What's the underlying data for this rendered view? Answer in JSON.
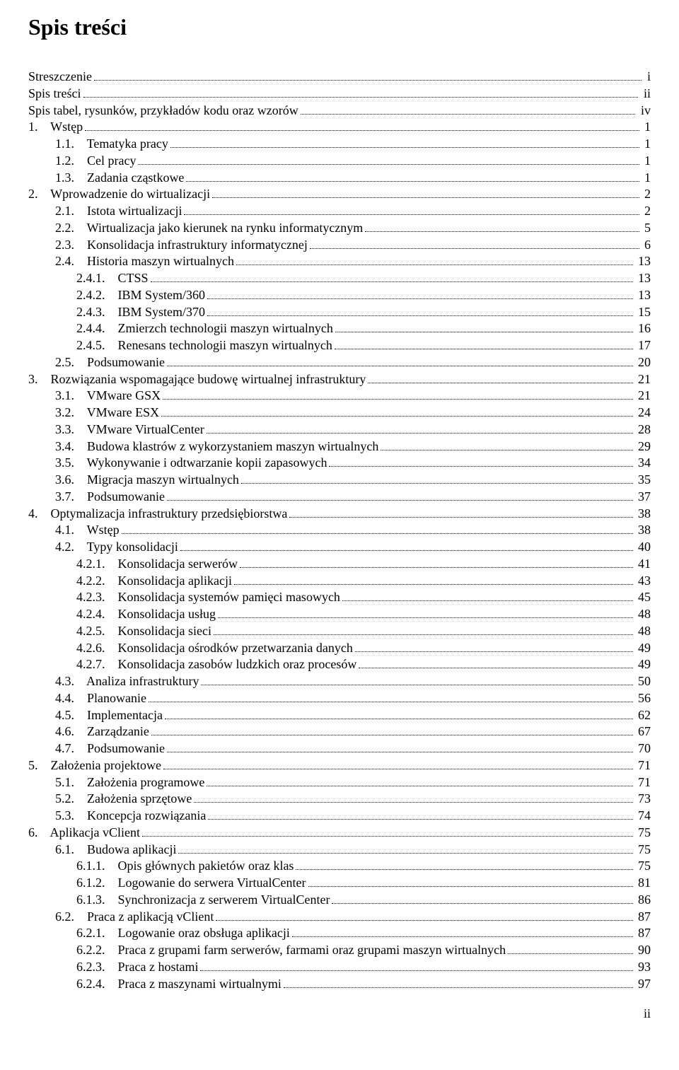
{
  "title": "Spis treści",
  "footer": "ii",
  "entries": [
    {
      "indent": 0,
      "label": "Streszczenie",
      "page": "i"
    },
    {
      "indent": 0,
      "label": "Spis treści",
      "page": "ii"
    },
    {
      "indent": 0,
      "label": "Spis tabel, rysunków, przykładów kodu oraz wzorów",
      "page": "iv"
    },
    {
      "indent": 0,
      "label": "1.    Wstęp",
      "page": "1"
    },
    {
      "indent": 2,
      "label": "1.1.    Tematyka pracy",
      "page": "1"
    },
    {
      "indent": 2,
      "label": "1.2.    Cel pracy",
      "page": "1"
    },
    {
      "indent": 2,
      "label": "1.3.    Zadania cząstkowe",
      "page": "1"
    },
    {
      "indent": 0,
      "label": "2.    Wprowadzenie do wirtualizacji",
      "page": "2"
    },
    {
      "indent": 2,
      "label": "2.1.    Istota wirtualizacji",
      "page": "2"
    },
    {
      "indent": 2,
      "label": "2.2.    Wirtualizacja jako kierunek na rynku informatycznym",
      "page": "5"
    },
    {
      "indent": 2,
      "label": "2.3.    Konsolidacja infrastruktury informatycznej",
      "page": "6"
    },
    {
      "indent": 2,
      "label": "2.4.    Historia maszyn wirtualnych",
      "page": "13"
    },
    {
      "indent": 3,
      "label": "2.4.1.    CTSS",
      "page": "13"
    },
    {
      "indent": 3,
      "label": "2.4.2.    IBM System/360",
      "page": "13"
    },
    {
      "indent": 3,
      "label": "2.4.3.    IBM System/370",
      "page": "15"
    },
    {
      "indent": 3,
      "label": "2.4.4.    Zmierzch technologii maszyn wirtualnych",
      "page": "16"
    },
    {
      "indent": 3,
      "label": "2.4.5.    Renesans technologii maszyn wirtualnych",
      "page": "17"
    },
    {
      "indent": 2,
      "label": "2.5.    Podsumowanie",
      "page": "20"
    },
    {
      "indent": 0,
      "label": "3.    Rozwiązania wspomagające budowę wirtualnej infrastruktury",
      "page": "21"
    },
    {
      "indent": 2,
      "label": "3.1.    VMware GSX",
      "page": "21"
    },
    {
      "indent": 2,
      "label": "3.2.    VMware ESX",
      "page": "24"
    },
    {
      "indent": 2,
      "label": "3.3.    VMware VirtualCenter",
      "page": "28"
    },
    {
      "indent": 2,
      "label": "3.4.    Budowa klastrów z wykorzystaniem maszyn wirtualnych",
      "page": "29"
    },
    {
      "indent": 2,
      "label": "3.5.    Wykonywanie i odtwarzanie kopii zapasowych",
      "page": "34"
    },
    {
      "indent": 2,
      "label": "3.6.    Migracja maszyn wirtualnych",
      "page": "35"
    },
    {
      "indent": 2,
      "label": "3.7.    Podsumowanie",
      "page": "37"
    },
    {
      "indent": 0,
      "label": "4.    Optymalizacja infrastruktury przedsiębiorstwa",
      "page": "38"
    },
    {
      "indent": 2,
      "label": "4.1.    Wstęp",
      "page": "38"
    },
    {
      "indent": 2,
      "label": "4.2.    Typy konsolidacji",
      "page": "40"
    },
    {
      "indent": 3,
      "label": "4.2.1.    Konsolidacja serwerów",
      "page": "41"
    },
    {
      "indent": 3,
      "label": "4.2.2.    Konsolidacja aplikacji",
      "page": "43"
    },
    {
      "indent": 3,
      "label": "4.2.3.    Konsolidacja systemów pamięci masowych",
      "page": "45"
    },
    {
      "indent": 3,
      "label": "4.2.4.    Konsolidacja usług",
      "page": "48"
    },
    {
      "indent": 3,
      "label": "4.2.5.    Konsolidacja sieci",
      "page": "48"
    },
    {
      "indent": 3,
      "label": "4.2.6.    Konsolidacja ośrodków przetwarzania danych",
      "page": "49"
    },
    {
      "indent": 3,
      "label": "4.2.7.    Konsolidacja zasobów ludzkich oraz procesów",
      "page": "49"
    },
    {
      "indent": 2,
      "label": "4.3.    Analiza infrastruktury",
      "page": "50"
    },
    {
      "indent": 2,
      "label": "4.4.    Planowanie",
      "page": "56"
    },
    {
      "indent": 2,
      "label": "4.5.    Implementacja",
      "page": "62"
    },
    {
      "indent": 2,
      "label": "4.6.    Zarządzanie",
      "page": "67"
    },
    {
      "indent": 2,
      "label": "4.7.    Podsumowanie",
      "page": "70"
    },
    {
      "indent": 0,
      "label": "5.    Założenia projektowe",
      "page": "71"
    },
    {
      "indent": 2,
      "label": "5.1.    Założenia programowe",
      "page": "71"
    },
    {
      "indent": 2,
      "label": "5.2.    Założenia sprzętowe",
      "page": "73"
    },
    {
      "indent": 2,
      "label": "5.3.    Koncepcja rozwiązania",
      "page": "74"
    },
    {
      "indent": 0,
      "label": "6.    Aplikacja vClient",
      "page": "75"
    },
    {
      "indent": 2,
      "label": "6.1.    Budowa aplikacji",
      "page": "75"
    },
    {
      "indent": 3,
      "label": "6.1.1.    Opis głównych pakietów oraz klas",
      "page": "75"
    },
    {
      "indent": 3,
      "label": "6.1.2.    Logowanie do serwera VirtualCenter",
      "page": "81"
    },
    {
      "indent": 3,
      "label": "6.1.3.    Synchronizacja z serwerem VirtualCenter",
      "page": "86"
    },
    {
      "indent": 2,
      "label": "6.2.    Praca z aplikacją vClient",
      "page": "87"
    },
    {
      "indent": 3,
      "label": "6.2.1.    Logowanie oraz obsługa aplikacji",
      "page": "87"
    },
    {
      "indent": 3,
      "label": "6.2.2.    Praca z grupami farm serwerów, farmami oraz grupami maszyn wirtualnych",
      "page": "90"
    },
    {
      "indent": 3,
      "label": "6.2.3.    Praca z hostami",
      "page": "93"
    },
    {
      "indent": 3,
      "label": "6.2.4.    Praca z maszynami wirtualnymi",
      "page": "97"
    }
  ]
}
